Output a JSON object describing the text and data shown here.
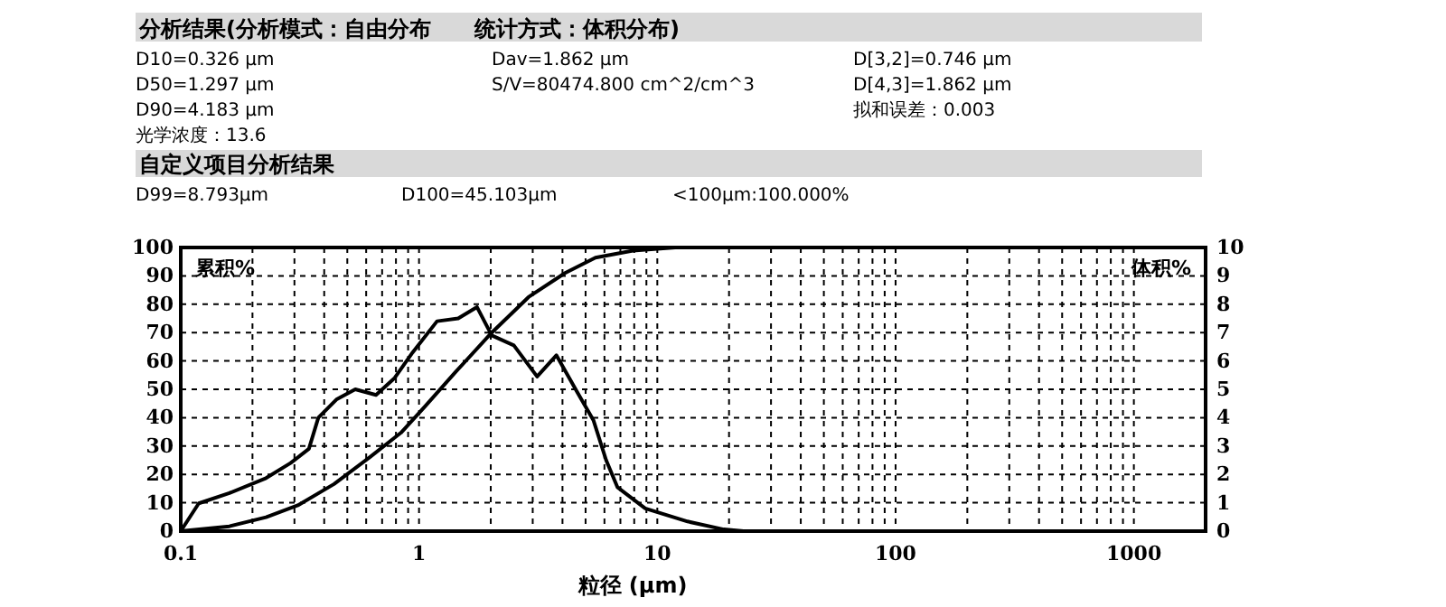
{
  "chart_data": {
    "type": "line",
    "title": "分析结果(分析模式：自由分布　　统计方式：体积分布)",
    "subtitle": "自定义项目分析结果",
    "annotations": [
      "D10=0.326 μm",
      "Dav=1.862 μm",
      "D[3,2]=0.746 μm",
      "D50=1.297 μm",
      "S/V=80474.800 cm^2/cm^3",
      "D[4,3]=1.862 μm",
      "D90=4.183 μm",
      "拟和误差：0.003",
      "光学浓度：13.6",
      "D99=8.793μm",
      "D100=45.103μm",
      "<100μm:100.000%"
    ],
    "xlabel": "粒径 (μm)",
    "ylabel": "累积%",
    "y2label": "体积%",
    "log": "x",
    "grid": true,
    "xlim": [
      0.1,
      2000
    ],
    "xticks": [
      {
        "value": 0.1,
        "label": "0.1"
      },
      {
        "value": 0.2,
        "label": null
      },
      {
        "value": 0.3,
        "label": null
      },
      {
        "value": 0.4,
        "label": null
      },
      {
        "value": 0.5,
        "label": null
      },
      {
        "value": 0.6,
        "label": null
      },
      {
        "value": 0.7,
        "label": null
      },
      {
        "value": 0.8,
        "label": null
      },
      {
        "value": 0.9,
        "label": null
      },
      1,
      {
        "value": 2,
        "label": null
      },
      {
        "value": 3,
        "label": null
      },
      {
        "value": 4,
        "label": null
      },
      {
        "value": 5,
        "label": null
      },
      {
        "value": 6,
        "label": null
      },
      {
        "value": 7,
        "label": null
      },
      {
        "value": 8,
        "label": null
      },
      {
        "value": 9,
        "label": null
      },
      10,
      {
        "value": 20,
        "label": null
      },
      {
        "value": 30,
        "label": null
      },
      {
        "value": 40,
        "label": null
      },
      {
        "value": 50,
        "label": null
      },
      {
        "value": 60,
        "label": null
      },
      {
        "value": 70,
        "label": null
      },
      {
        "value": 80,
        "label": null
      },
      {
        "value": 90,
        "label": null
      },
      100,
      {
        "value": 200,
        "label": null
      },
      {
        "value": 300,
        "label": null
      },
      {
        "value": 400,
        "label": null
      },
      {
        "value": 500,
        "label": null
      },
      {
        "value": 600,
        "label": null
      },
      {
        "value": 700,
        "label": null
      },
      {
        "value": 800,
        "label": null
      },
      {
        "value": 900,
        "label": null
      },
      1000
    ],
    "ylim": [
      0,
      100
    ],
    "yticks": [
      0,
      10,
      20,
      30,
      40,
      50,
      60,
      70,
      80,
      90,
      100
    ],
    "y2lim": [
      0,
      10
    ],
    "y2ticks": [
      0,
      1,
      2,
      3,
      4,
      5,
      6,
      7,
      8,
      9,
      10
    ],
    "series": [
      {
        "color": "#000000",
        "x": [
          0.1,
          0.16,
          0.228,
          0.31,
          0.44,
          0.62,
          0.84,
          1.06,
          1.42,
          2.02,
          2.88,
          4.1,
          5.5,
          7.9,
          11.9,
          300
        ],
        "values": [
          0,
          1.7,
          4.9,
          9.1,
          16.6,
          26,
          34.7,
          44,
          56,
          70,
          82.5,
          91,
          96.4,
          98.9,
          100,
          100
        ]
      },
      {
        "color": "#000000",
        "axis": "y2",
        "x": [
          0.1,
          0.119,
          0.16,
          0.228,
          0.289,
          0.345,
          0.378,
          0.45,
          0.54,
          0.66,
          0.79,
          0.94,
          1.19,
          1.46,
          1.75,
          2.02,
          2.5,
          3.13,
          3.77,
          4.65,
          5.4,
          6.1,
          6.8,
          8.9,
          13.4,
          19,
          23,
          300
        ],
        "values": [
          0,
          0.98,
          1.34,
          1.87,
          2.4,
          2.9,
          4.0,
          4.64,
          5.0,
          4.8,
          5.4,
          6.3,
          7.4,
          7.5,
          7.9,
          6.9,
          6.55,
          5.45,
          6.2,
          4.85,
          3.9,
          2.5,
          1.55,
          0.8,
          0.34,
          0.06,
          0,
          0
        ]
      }
    ]
  }
}
